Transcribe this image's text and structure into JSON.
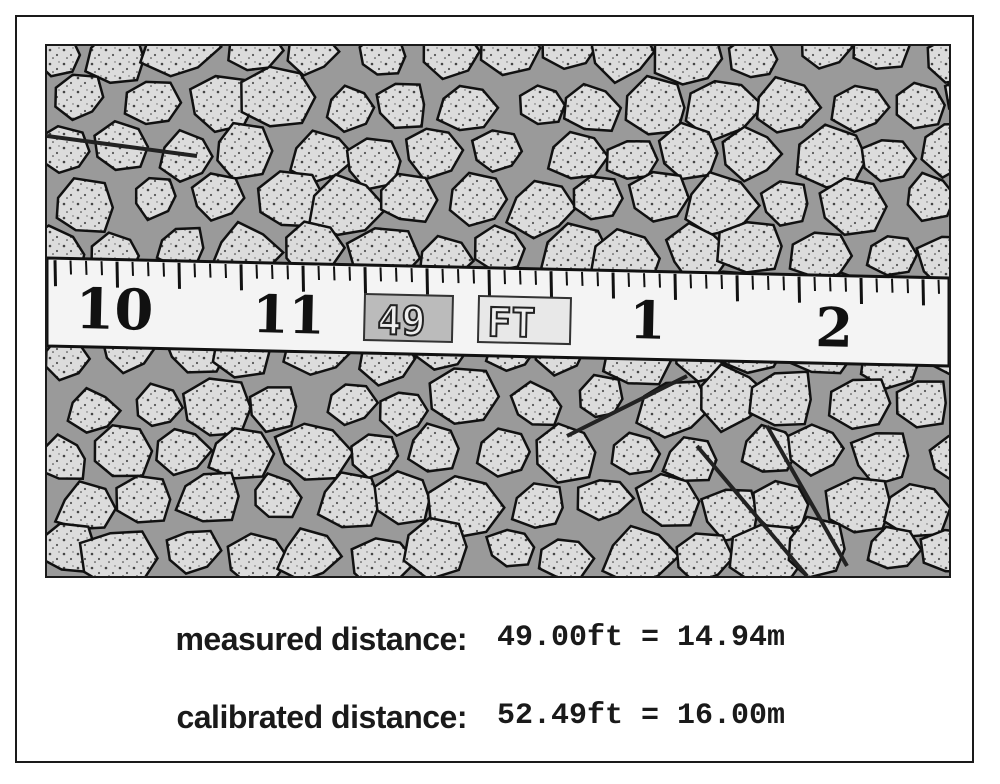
{
  "tape": {
    "numbers": [
      "10",
      "11",
      "1",
      "2"
    ],
    "stamp": "49",
    "unit": "FT"
  },
  "measurements": {
    "measured_label": "measured distance:",
    "measured_value": "49.00ft = 14.94m",
    "calibrated_label": "calibrated distance:",
    "calibrated_value": "52.49ft = 16.00m"
  },
  "colors": {
    "ink": "#1a1a1a",
    "paper": "#ffffff"
  }
}
